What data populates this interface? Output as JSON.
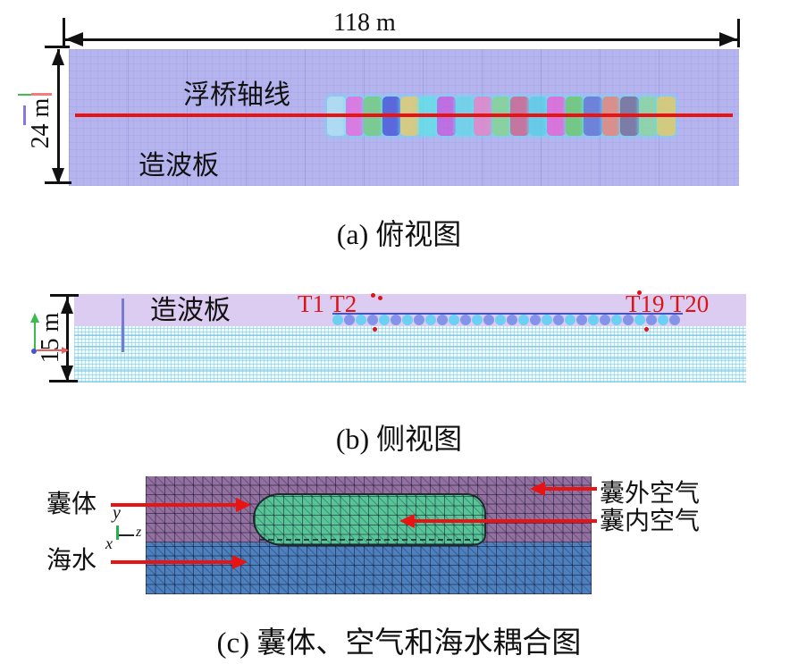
{
  "colors": {
    "a_mesh": "#b5b4ee",
    "red_line": "#e81313",
    "b_air": "#ddccf1",
    "b_plate": "#7a7ad0",
    "water_base": "#f2fafd",
    "c_outer_air": "#92709f",
    "c_seawater": "#4d80bf",
    "c_inner_air": "#58c598",
    "arrow_red": "#e81313",
    "probe_red": "#dd1414",
    "dim_black": "#111111"
  },
  "panel_a": {
    "caption": "(a) 俯视图",
    "width_label": "118 m",
    "height_label": "24 m",
    "axis_label": "浮桥轴线",
    "waveboard_label": "造波板",
    "pontoon_colors": [
      "#aee3f2",
      "#e070e0",
      "#70d080",
      "#4858d8",
      "#ddd070",
      "#60e0e8",
      "#c060e0",
      "#68d8e8",
      "#e088c8",
      "#80d890",
      "#c86890",
      "#58d0e8",
      "#e068d8",
      "#68cc70",
      "#6078d8",
      "#e08878",
      "#707098",
      "#88d8a0",
      "#d8d068"
    ]
  },
  "panel_b": {
    "caption": "(b) 侧视图",
    "depth_label": "15 m",
    "waveboard_label": "造波板",
    "probe_left": "T1 T2",
    "probe_right": "T19 T20",
    "float_count": 30,
    "circle_color_a": "#6cd0f2",
    "circle_color_b": "#8494ea"
  },
  "panel_c": {
    "caption": "(c) 囊体、空气和海水耦合图",
    "labels": {
      "bag": "囊体",
      "seawater": "海水",
      "outer_air": "囊外空气",
      "inner_air": "囊内空气"
    },
    "axis": {
      "x": "x",
      "y": "y",
      "z": "z"
    }
  }
}
